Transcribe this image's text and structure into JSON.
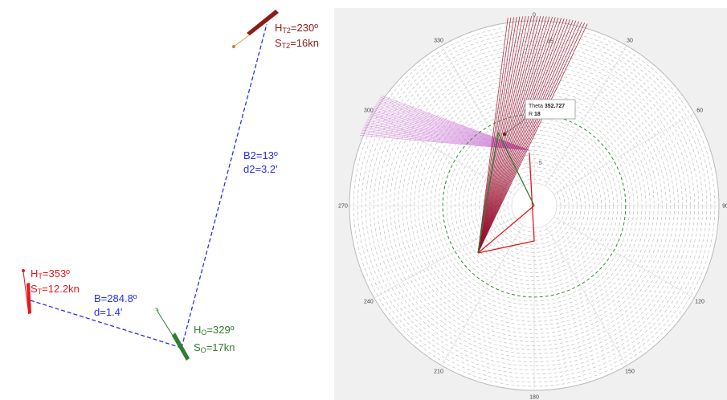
{
  "colors": {
    "target": "#e8161b",
    "target2": "#8b1c16",
    "own": "#2e7d32",
    "range_line": "#2a2ef0",
    "fan_target2": "#9b1030",
    "fan_target": "#d080d8",
    "grid_dashed": "#b8b8b8",
    "circle_green": "#3a8a3a"
  },
  "left_diagram": {
    "target1": {
      "heading_prefix": "H",
      "heading_sub": "T",
      "heading_value": "=353º",
      "speed_prefix": "S",
      "speed_sub": "T",
      "speed_value": "=12.2kn"
    },
    "target2": {
      "heading_prefix": "H",
      "heading_sub": "T2",
      "heading_value": "=230º",
      "speed_prefix": "S",
      "speed_sub": "T2",
      "speed_value": "=16kn"
    },
    "own_ship": {
      "heading_prefix": "H",
      "heading_sub": "O",
      "heading_value": "=329º",
      "speed_prefix": "S",
      "speed_sub": "O",
      "speed_value": "=17kn"
    },
    "bearing1": {
      "bearing": "B=284.8º",
      "distance": "d=1.4'"
    },
    "bearing2": {
      "bearing": "B2=13º",
      "distance": "d2=3.2'"
    }
  },
  "polar_plot": {
    "angle_ticks": [
      "0",
      "30",
      "60",
      "90",
      "120",
      "150",
      "180",
      "210",
      "240",
      "270",
      "300",
      "330"
    ],
    "radius_labels": [
      "5",
      "17",
      "35"
    ],
    "max_radius": 40,
    "green_circle_radius": 17,
    "tooltip": {
      "theta_label": "Theta",
      "theta_value": "352.727",
      "r_label": "R",
      "r_value": "18"
    }
  }
}
